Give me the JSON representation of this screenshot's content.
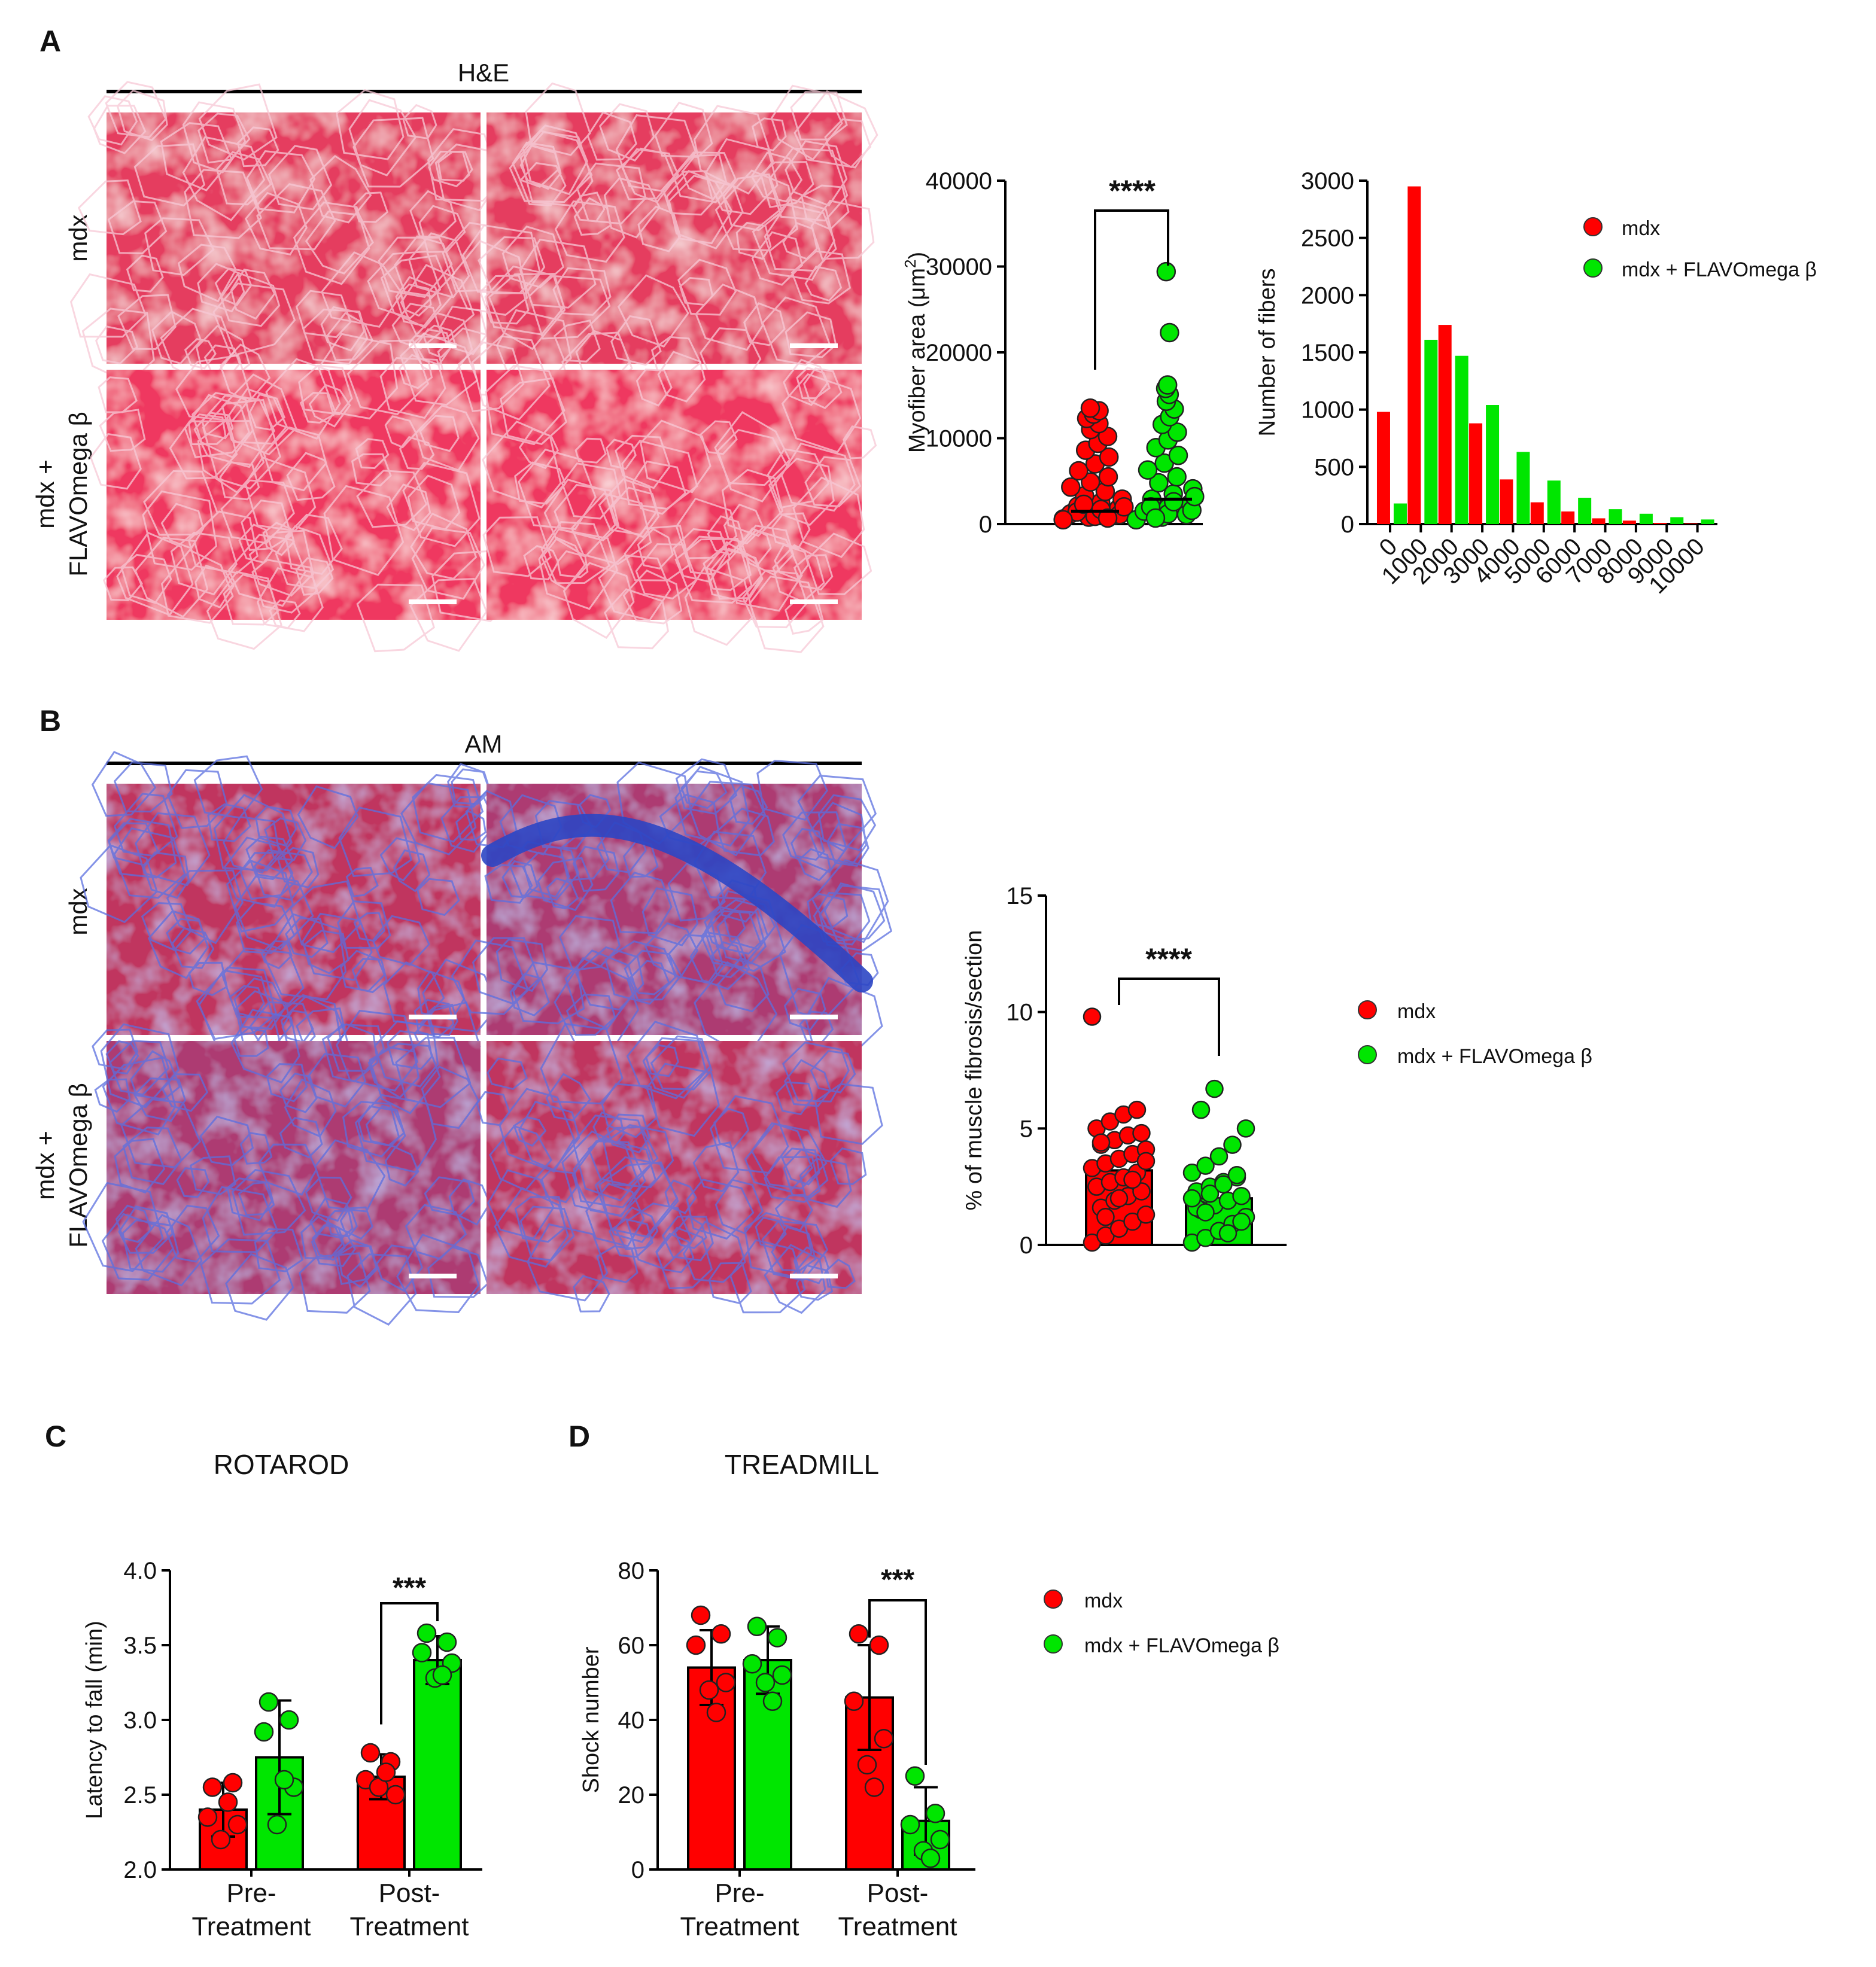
{
  "panels": {
    "A": {
      "letter": "A",
      "stain": "H&E",
      "row_labels": {
        "top": "mdx",
        "bottom_line1": "mdx +",
        "bottom_line2": "FLAVOmega β"
      }
    },
    "B": {
      "letter": "B",
      "stain": "AM",
      "row_labels": {
        "top": "mdx",
        "bottom_line1": "mdx +",
        "bottom_line2": "FLAVOmega β"
      }
    },
    "C": {
      "letter": "C",
      "title": "ROTAROD"
    },
    "D": {
      "letter": "D",
      "title": "TREADMILL"
    }
  },
  "micrographs": {
    "he": {
      "base": "#e53c5f",
      "tint": "#ef3760"
    },
    "am": {
      "base": "#c0345e",
      "tint": "#ad3b72",
      "fibrosis": "#2c46c4"
    }
  },
  "colors": {
    "mdx": "#ff0000",
    "treated": "#00e600",
    "scale_bar": "#ffffff"
  },
  "legends": {
    "A": [
      "mdx",
      "mdx + FLAVOmega β"
    ],
    "B": [
      "mdx",
      "mdx + FLAVOmega β"
    ],
    "CD": [
      "mdx",
      "mdx + FLAVOmega β"
    ]
  },
  "chart_data": [
    {
      "id": "myofiber-area",
      "type": "scatter",
      "ylabel": "Myofiber area (μm²)",
      "ylim": [
        0,
        40000
      ],
      "yticks": [
        "0",
        "10000",
        "20000",
        "30000",
        "40000"
      ],
      "groups": [
        "mdx",
        "mdx + FLAVOmega β"
      ],
      "points": {
        "mdx": [
          600,
          800,
          1000,
          1200,
          1500,
          1800,
          2100,
          2500,
          2900,
          3300,
          3800,
          4300,
          4900,
          5500,
          6200,
          7000,
          7800,
          8600,
          9400,
          10200,
          11000,
          11700,
          12300,
          12800,
          13200,
          13500,
          900,
          1100,
          1400,
          1700,
          2000,
          2300,
          700,
          500
        ],
        "treated": [
          500,
          800,
          1100,
          1500,
          1900,
          2400,
          2900,
          3500,
          4100,
          4800,
          5500,
          6300,
          7100,
          8000,
          8900,
          9800,
          10700,
          11600,
          12500,
          13400,
          14300,
          15100,
          15800,
          16200,
          22300,
          29400,
          1200,
          1600,
          2000,
          2600,
          3200,
          700
        ]
      },
      "significance": "****"
    },
    {
      "id": "fiber-histogram",
      "type": "bar",
      "ylabel": "Number of fibers",
      "ylim": [
        0,
        3000
      ],
      "yticks": [
        "0",
        "500",
        "1000",
        "1500",
        "2000",
        "2500",
        "3000"
      ],
      "categories": [
        "0",
        "1000",
        "2000",
        "3000",
        "4000",
        "5000",
        "6000",
        "7000",
        "8000",
        "9000",
        "10000"
      ],
      "series": [
        {
          "name": "mdx",
          "values": [
            980,
            2950,
            1740,
            880,
            390,
            190,
            110,
            50,
            30,
            10,
            5
          ]
        },
        {
          "name": "mdx + FLAVOmega β",
          "values": [
            180,
            1610,
            1470,
            1040,
            630,
            380,
            230,
            130,
            90,
            60,
            40
          ]
        }
      ],
      "legend": "top-right"
    },
    {
      "id": "fibrosis",
      "type": "bar",
      "ylabel": "% of muscle fibrosis/section",
      "ylim": [
        0,
        15
      ],
      "yticks": [
        "0",
        "5",
        "10",
        "15"
      ],
      "categories": [
        "mdx",
        "mdx + FLAVOmega β"
      ],
      "values": [
        3.2,
        2.0
      ],
      "points": {
        "mdx": [
          0.1,
          0.4,
          0.7,
          1.0,
          1.3,
          1.6,
          1.9,
          2.1,
          2.3,
          2.5,
          2.7,
          2.9,
          3.1,
          3.3,
          3.5,
          3.7,
          3.9,
          4.1,
          4.3,
          4.5,
          4.7,
          4.8,
          5.0,
          5.3,
          5.6,
          5.8,
          9.8,
          1.2,
          2.0,
          2.8,
          3.6,
          4.4
        ],
        "treated": [
          0.1,
          0.3,
          0.6,
          0.9,
          1.2,
          1.5,
          1.7,
          1.9,
          2.1,
          2.3,
          2.5,
          2.7,
          2.9,
          3.1,
          3.4,
          3.8,
          4.3,
          5.0,
          5.8,
          6.7,
          0.5,
          1.0,
          1.6,
          2.2,
          2.6,
          3.0,
          2.0,
          1.4
        ]
      },
      "significance": "****",
      "legend": "right"
    },
    {
      "id": "rotarod",
      "type": "bar",
      "ylabel": "Latency to fall (min)",
      "ylim": [
        2.0,
        4.0
      ],
      "yticks": [
        "2.0",
        "2.5",
        "3.0",
        "3.5",
        "4.0"
      ],
      "categories": [
        [
          "Pre-",
          "Treatment"
        ],
        [
          "Post-",
          "Treatment"
        ]
      ],
      "series": [
        {
          "name": "mdx",
          "values": [
            2.4,
            2.62
          ],
          "sd": [
            0.18,
            0.15
          ],
          "points": [
            [
              2.55,
              2.58,
              2.35,
              2.3,
              2.2,
              2.45
            ],
            [
              2.78,
              2.72,
              2.6,
              2.5,
              2.55,
              2.65
            ]
          ]
        },
        {
          "name": "mdx + FLAVOmega β",
          "values": [
            2.75,
            3.4
          ],
          "sd": [
            0.38,
            0.16
          ],
          "points": [
            [
              3.12,
              3.0,
              2.92,
              2.55,
              2.3,
              2.6
            ],
            [
              3.58,
              3.52,
              3.45,
              3.38,
              3.28,
              3.3
            ]
          ]
        }
      ],
      "significance": {
        "group": 1,
        "label": "***"
      }
    },
    {
      "id": "treadmill",
      "type": "bar",
      "ylabel": "Shock number",
      "ylim": [
        0,
        80
      ],
      "yticks": [
        "0",
        "20",
        "40",
        "60",
        "80"
      ],
      "categories": [
        [
          "Pre-",
          "Treatment"
        ],
        [
          "Post-",
          "Treatment"
        ]
      ],
      "series": [
        {
          "name": "mdx",
          "values": [
            54,
            46
          ],
          "sd": [
            10,
            14
          ],
          "points": [
            [
              68,
              63,
              60,
              50,
              48,
              42
            ],
            [
              63,
              60,
              45,
              35,
              28,
              22
            ]
          ]
        },
        {
          "name": "mdx + FLAVOmega β",
          "values": [
            56,
            13
          ],
          "sd": [
            9,
            9
          ],
          "points": [
            [
              65,
              62,
              55,
              52,
              50,
              45
            ],
            [
              25,
              15,
              12,
              8,
              5,
              3
            ]
          ]
        }
      ],
      "significance": {
        "group": 1,
        "label": "***"
      }
    }
  ]
}
